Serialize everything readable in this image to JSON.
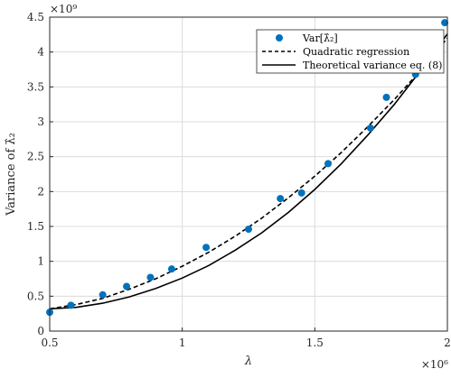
{
  "chart_data": {
    "type": "scatter",
    "xlabel": "λ",
    "ylabel": "Variance of λ̂₂",
    "xlim": [
      0.5,
      2.0
    ],
    "ylim": [
      0,
      4.5
    ],
    "x_multiplier": "×10⁶",
    "y_multiplier": "×10⁹",
    "x_ticks": [
      0.5,
      1,
      1.5,
      2
    ],
    "x_tick_labels": [
      "0.5",
      "1",
      "1.5",
      "2"
    ],
    "y_ticks": [
      0,
      0.5,
      1,
      1.5,
      2,
      2.5,
      3,
      3.5,
      4,
      4.5
    ],
    "y_tick_labels": [
      "0",
      "0.5",
      "1",
      "1.5",
      "2",
      "2.5",
      "3",
      "3.5",
      "4",
      "4.5"
    ],
    "grid": true,
    "legend_position": "top-right",
    "series": [
      {
        "name": "Var[λ̂₂]",
        "kind": "markers",
        "color": "#0072BD",
        "x": [
          0.5,
          0.58,
          0.7,
          0.79,
          0.88,
          0.96,
          1.09,
          1.25,
          1.37,
          1.45,
          1.55,
          1.71,
          1.77,
          1.88,
          1.99
        ],
        "y": [
          0.27,
          0.37,
          0.52,
          0.64,
          0.77,
          0.89,
          1.2,
          1.46,
          1.9,
          1.98,
          2.4,
          2.91,
          3.35,
          3.68,
          4.42
        ]
      },
      {
        "name": "Quadratic regression",
        "kind": "dashed",
        "color": "#000000",
        "x": [
          0.5,
          0.6,
          0.7,
          0.8,
          0.9,
          1.0,
          1.1,
          1.2,
          1.3,
          1.4,
          1.5,
          1.6,
          1.7,
          1.8,
          1.9,
          2.0
        ],
        "y": [
          0.32,
          0.38,
          0.47,
          0.6,
          0.75,
          0.93,
          1.13,
          1.36,
          1.62,
          1.91,
          2.22,
          2.56,
          2.93,
          3.32,
          3.74,
          4.2
        ]
      },
      {
        "name": "Theoretical variance eq. (8)",
        "kind": "solid",
        "color": "#000000",
        "x": [
          0.5,
          0.6,
          0.7,
          0.8,
          0.9,
          1.0,
          1.1,
          1.2,
          1.3,
          1.4,
          1.5,
          1.6,
          1.7,
          1.8,
          1.9,
          2.0
        ],
        "y": [
          0.32,
          0.34,
          0.4,
          0.49,
          0.61,
          0.76,
          0.94,
          1.16,
          1.41,
          1.7,
          2.03,
          2.4,
          2.81,
          3.25,
          3.74,
          4.26
        ]
      }
    ]
  }
}
